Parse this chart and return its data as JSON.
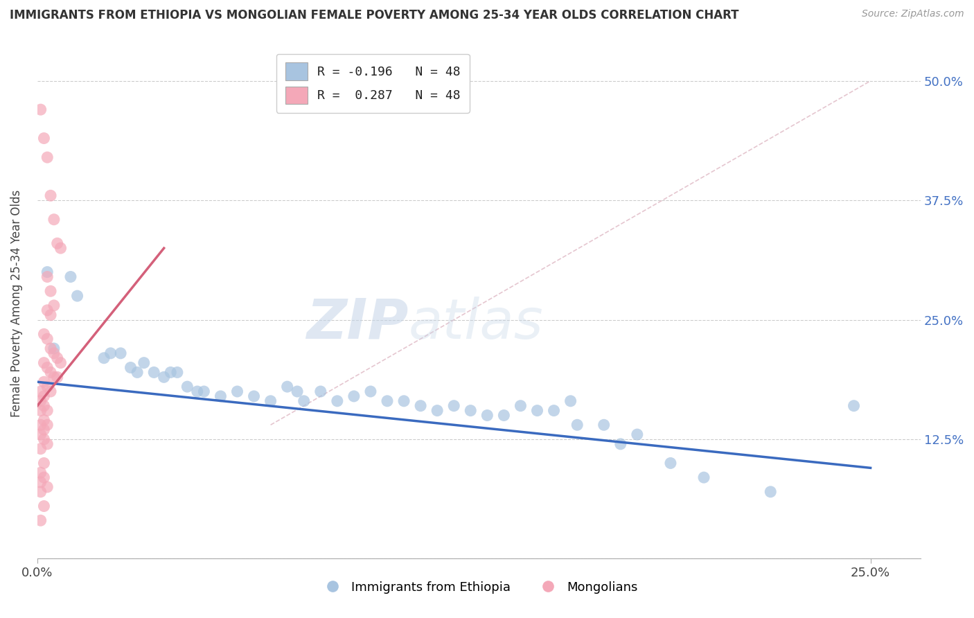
{
  "title": "IMMIGRANTS FROM ETHIOPIA VS MONGOLIAN FEMALE POVERTY AMONG 25-34 YEAR OLDS CORRELATION CHART",
  "source": "Source: ZipAtlas.com",
  "ylabel": "Female Poverty Among 25-34 Year Olds",
  "y_ticks": [
    0.0,
    0.125,
    0.25,
    0.375,
    0.5
  ],
  "y_tick_labels_right": [
    "",
    "12.5%",
    "25.0%",
    "37.5%",
    "50.0%"
  ],
  "x_ticks": [
    0.0,
    0.25
  ],
  "x_tick_labels": [
    "0.0%",
    "25.0%"
  ],
  "x_range": [
    0.0,
    0.265
  ],
  "y_range": [
    0.0,
    0.535
  ],
  "legend_label_blue": "R = -0.196   N = 48",
  "legend_label_pink": "R =  0.287   N = 48",
  "legend_label_blue_bottom": "Immigrants from Ethiopia",
  "legend_label_pink_bottom": "Mongolians",
  "blue_color": "#a8c4e0",
  "pink_color": "#f4a8b8",
  "blue_line_color": "#3a6abf",
  "pink_line_color": "#d4607a",
  "diag_line_color": "#d4a0b0",
  "blue_line": [
    [
      0.0,
      0.185
    ],
    [
      0.25,
      0.095
    ]
  ],
  "pink_line": [
    [
      0.0,
      0.16
    ],
    [
      0.038,
      0.325
    ]
  ],
  "blue_scatter": [
    [
      0.003,
      0.3
    ],
    [
      0.005,
      0.22
    ],
    [
      0.01,
      0.295
    ],
    [
      0.012,
      0.275
    ],
    [
      0.02,
      0.21
    ],
    [
      0.022,
      0.215
    ],
    [
      0.025,
      0.215
    ],
    [
      0.028,
      0.2
    ],
    [
      0.03,
      0.195
    ],
    [
      0.032,
      0.205
    ],
    [
      0.035,
      0.195
    ],
    [
      0.038,
      0.19
    ],
    [
      0.04,
      0.195
    ],
    [
      0.042,
      0.195
    ],
    [
      0.045,
      0.18
    ],
    [
      0.048,
      0.175
    ],
    [
      0.05,
      0.175
    ],
    [
      0.055,
      0.17
    ],
    [
      0.06,
      0.175
    ],
    [
      0.065,
      0.17
    ],
    [
      0.07,
      0.165
    ],
    [
      0.075,
      0.18
    ],
    [
      0.078,
      0.175
    ],
    [
      0.08,
      0.165
    ],
    [
      0.085,
      0.175
    ],
    [
      0.09,
      0.165
    ],
    [
      0.095,
      0.17
    ],
    [
      0.1,
      0.175
    ],
    [
      0.105,
      0.165
    ],
    [
      0.11,
      0.165
    ],
    [
      0.115,
      0.16
    ],
    [
      0.12,
      0.155
    ],
    [
      0.125,
      0.16
    ],
    [
      0.13,
      0.155
    ],
    [
      0.135,
      0.15
    ],
    [
      0.14,
      0.15
    ],
    [
      0.145,
      0.16
    ],
    [
      0.15,
      0.155
    ],
    [
      0.155,
      0.155
    ],
    [
      0.16,
      0.165
    ],
    [
      0.162,
      0.14
    ],
    [
      0.17,
      0.14
    ],
    [
      0.175,
      0.12
    ],
    [
      0.18,
      0.13
    ],
    [
      0.19,
      0.1
    ],
    [
      0.2,
      0.085
    ],
    [
      0.22,
      0.07
    ],
    [
      0.245,
      0.16
    ]
  ],
  "pink_scatter": [
    [
      0.001,
      0.47
    ],
    [
      0.002,
      0.44
    ],
    [
      0.003,
      0.42
    ],
    [
      0.004,
      0.38
    ],
    [
      0.005,
      0.355
    ],
    [
      0.006,
      0.33
    ],
    [
      0.007,
      0.325
    ],
    [
      0.003,
      0.295
    ],
    [
      0.004,
      0.28
    ],
    [
      0.005,
      0.265
    ],
    [
      0.003,
      0.26
    ],
    [
      0.004,
      0.255
    ],
    [
      0.002,
      0.235
    ],
    [
      0.003,
      0.23
    ],
    [
      0.004,
      0.22
    ],
    [
      0.005,
      0.215
    ],
    [
      0.006,
      0.21
    ],
    [
      0.007,
      0.205
    ],
    [
      0.002,
      0.205
    ],
    [
      0.003,
      0.2
    ],
    [
      0.004,
      0.195
    ],
    [
      0.005,
      0.19
    ],
    [
      0.006,
      0.19
    ],
    [
      0.002,
      0.185
    ],
    [
      0.003,
      0.18
    ],
    [
      0.004,
      0.175
    ],
    [
      0.001,
      0.175
    ],
    [
      0.002,
      0.17
    ],
    [
      0.001,
      0.165
    ],
    [
      0.002,
      0.16
    ],
    [
      0.003,
      0.155
    ],
    [
      0.001,
      0.155
    ],
    [
      0.002,
      0.145
    ],
    [
      0.003,
      0.14
    ],
    [
      0.001,
      0.14
    ],
    [
      0.002,
      0.135
    ],
    [
      0.001,
      0.13
    ],
    [
      0.002,
      0.125
    ],
    [
      0.003,
      0.12
    ],
    [
      0.001,
      0.115
    ],
    [
      0.002,
      0.1
    ],
    [
      0.001,
      0.09
    ],
    [
      0.002,
      0.085
    ],
    [
      0.001,
      0.08
    ],
    [
      0.003,
      0.075
    ],
    [
      0.001,
      0.07
    ],
    [
      0.002,
      0.055
    ],
    [
      0.001,
      0.04
    ]
  ]
}
